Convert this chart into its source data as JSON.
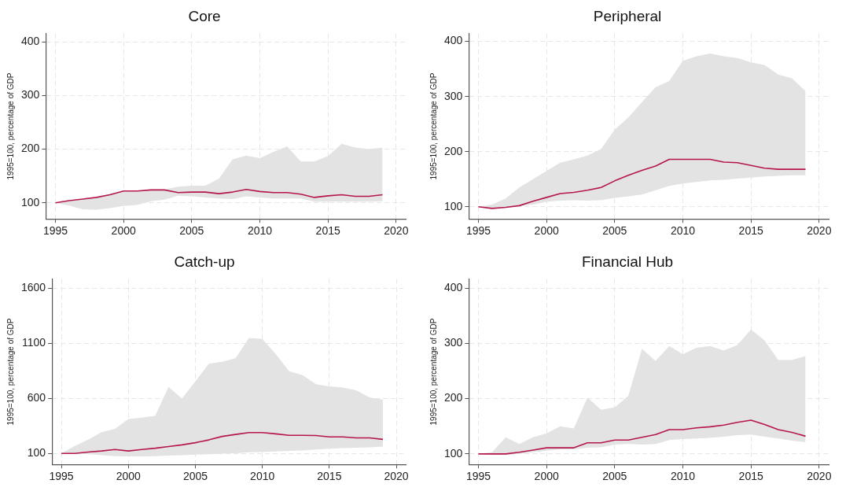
{
  "chart_data": [
    {
      "type": "line",
      "title": "Core",
      "ylabel": "1995=100, percentage of GDP",
      "x": [
        1995,
        1996,
        1997,
        1998,
        1999,
        2000,
        2001,
        2002,
        2003,
        2004,
        2005,
        2006,
        2007,
        2008,
        2009,
        2010,
        2011,
        2012,
        2013,
        2014,
        2015,
        2016,
        2017,
        2018,
        2019
      ],
      "xlim": [
        1994.3,
        2020.7
      ],
      "xticks": [
        1995,
        2000,
        2005,
        2010,
        2015,
        2020
      ],
      "ylim": [
        70,
        415
      ],
      "yticks": [
        100,
        200,
        300,
        400
      ],
      "grid": true,
      "legend": false,
      "series": [
        {
          "color": "#b5174a",
          "values": [
            100,
            104,
            107,
            110,
            115,
            122,
            122,
            124,
            124,
            119,
            120,
            120,
            117,
            120,
            125,
            121,
            119,
            119,
            116,
            110,
            113,
            115,
            112,
            112,
            115
          ],
          "lower": [
            100,
            95,
            88,
            87,
            90,
            94,
            96,
            103,
            106,
            113,
            112,
            110,
            108,
            107,
            112,
            110,
            108,
            108,
            108,
            102,
            102,
            102,
            102,
            102,
            103
          ],
          "upper": [
            100,
            103,
            107,
            110,
            117,
            122,
            122,
            125,
            125,
            130,
            132,
            132,
            145,
            181,
            188,
            183,
            195,
            205,
            177,
            177,
            187,
            210,
            203,
            200,
            203
          ]
        }
      ]
    },
    {
      "type": "line",
      "title": "Peripheral",
      "ylabel": "1995=100, percentage of GDP",
      "x": [
        1995,
        1996,
        1997,
        1998,
        1999,
        2000,
        2001,
        2002,
        2003,
        2004,
        2005,
        2006,
        2007,
        2008,
        2009,
        2010,
        2011,
        2012,
        2013,
        2014,
        2015,
        2016,
        2017,
        2018,
        2019
      ],
      "xlim": [
        1994.3,
        2020.7
      ],
      "xticks": [
        1995,
        2000,
        2005,
        2010,
        2015,
        2020
      ],
      "ylim": [
        78,
        414
      ],
      "yticks": [
        100,
        200,
        300,
        400
      ],
      "grid": true,
      "legend": false,
      "series": [
        {
          "color": "#b5174a",
          "values": [
            100,
            97,
            99,
            102,
            110,
            117,
            124,
            126,
            130,
            135,
            147,
            157,
            166,
            174,
            186,
            186,
            186,
            186,
            181,
            180,
            175,
            170,
            168,
            168,
            168
          ],
          "lower": [
            100,
            97,
            98,
            101,
            104,
            109,
            111,
            112,
            111,
            112,
            116,
            119,
            122,
            130,
            138,
            142,
            145,
            148,
            149,
            151,
            153,
            155,
            156,
            157,
            157
          ],
          "upper": [
            100,
            104,
            115,
            135,
            150,
            165,
            180,
            186,
            193,
            205,
            240,
            262,
            290,
            317,
            328,
            365,
            373,
            378,
            373,
            370,
            362,
            357,
            340,
            333,
            310
          ]
        }
      ]
    },
    {
      "type": "line",
      "title": "Catch-up",
      "ylabel": "1995=100, percentage of GDP",
      "x": [
        1995,
        1996,
        1997,
        1998,
        1999,
        2000,
        2001,
        2002,
        2003,
        2004,
        2005,
        2006,
        2007,
        2008,
        2009,
        2010,
        2011,
        2012,
        2013,
        2014,
        2015,
        2016,
        2017,
        2018,
        2019
      ],
      "xlim": [
        1994.3,
        2020.7
      ],
      "xticks": [
        1995,
        2000,
        2005,
        2010,
        2015,
        2020
      ],
      "ylim": [
        0,
        1680
      ],
      "yticks": [
        100,
        600,
        1100,
        1600
      ],
      "grid": true,
      "legend": false,
      "series": [
        {
          "color": "#b5174a",
          "values": [
            100,
            100,
            112,
            122,
            135,
            122,
            135,
            147,
            162,
            177,
            197,
            222,
            254,
            272,
            289,
            289,
            277,
            264,
            264,
            262,
            249,
            249,
            240,
            240,
            227
          ],
          "lower": [
            100,
            100,
            93,
            83,
            75,
            73,
            73,
            75,
            80,
            83,
            88,
            93,
            98,
            102,
            110,
            112,
            117,
            122,
            127,
            135,
            142,
            147,
            152,
            155,
            162
          ],
          "upper": [
            100,
            167,
            225,
            292,
            322,
            411,
            424,
            441,
            703,
            598,
            752,
            914,
            931,
            964,
            1146,
            1138,
            1001,
            845,
            810,
            727,
            708,
            698,
            673,
            608,
            586
          ]
        }
      ]
    },
    {
      "type": "line",
      "title": "Financial Hub",
      "ylabel": "1995=100, percentage of GDP",
      "x": [
        1995,
        1996,
        1997,
        1998,
        1999,
        2000,
        2001,
        2002,
        2003,
        2004,
        2005,
        2006,
        2007,
        2008,
        2009,
        2010,
        2011,
        2012,
        2013,
        2014,
        2015,
        2016,
        2017,
        2018,
        2019
      ],
      "xlim": [
        1994.3,
        2020.7
      ],
      "xticks": [
        1995,
        2000,
        2005,
        2010,
        2015,
        2020
      ],
      "ylim": [
        81,
        416
      ],
      "yticks": [
        100,
        200,
        300,
        400
      ],
      "grid": true,
      "legend": false,
      "series": [
        {
          "color": "#b5174a",
          "values": [
            100,
            100,
            100,
            103,
            107,
            111,
            111,
            111,
            120,
            120,
            125,
            125,
            130,
            135,
            144,
            144,
            147,
            149,
            152,
            157,
            161,
            153,
            144,
            139,
            132
          ],
          "lower": [
            100,
            98,
            98,
            100,
            103,
            106,
            108,
            108,
            111,
            112,
            117,
            118,
            117,
            118,
            125,
            127,
            128,
            129,
            131,
            134,
            135,
            131,
            128,
            124,
            121
          ],
          "upper": [
            100,
            103,
            130,
            118,
            130,
            137,
            150,
            146,
            202,
            180,
            184,
            205,
            290,
            268,
            295,
            280,
            292,
            295,
            287,
            297,
            325,
            305,
            270,
            270,
            277
          ]
        }
      ]
    }
  ]
}
